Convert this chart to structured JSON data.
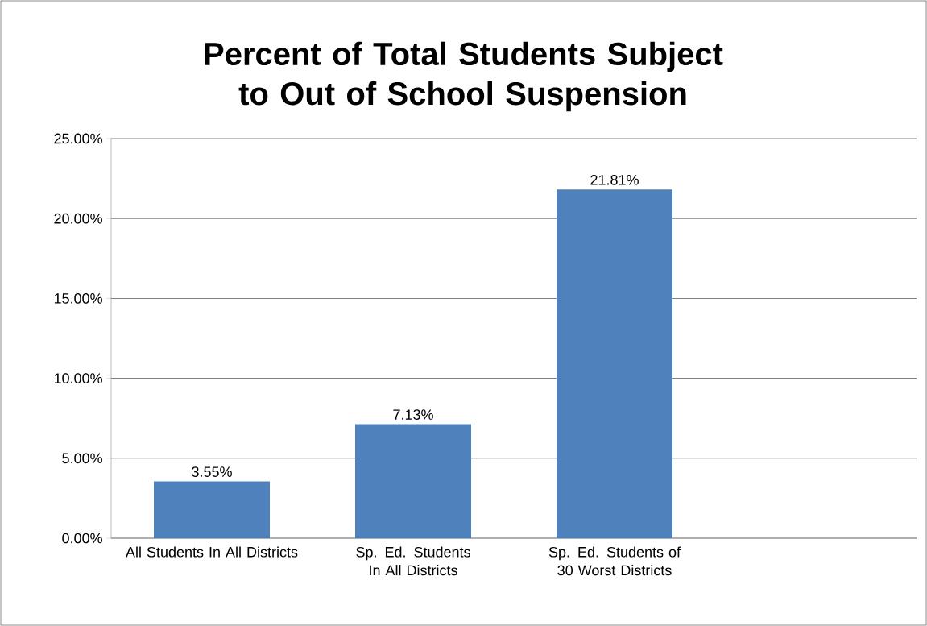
{
  "chart_data": {
    "type": "bar",
    "title": "Percent of Total Students Subject to Out of School Suspension",
    "categories": [
      "All Students In All Districts",
      "Sp. Ed. Students In All Districts",
      "Sp. Ed. Students of 30 Worst Districts",
      null
    ],
    "values": [
      3.55,
      7.13,
      21.81,
      null
    ],
    "value_labels": [
      "3.55%",
      "7.13%",
      "21.81%",
      null
    ],
    "color": "#4f81bd",
    "ylim": [
      0,
      25
    ],
    "yticks": [
      {
        "value": 0,
        "label": "0.00%"
      },
      {
        "value": 5,
        "label": "5.00%"
      },
      {
        "value": 10,
        "label": "10.00%"
      },
      {
        "value": 15,
        "label": "15.00%"
      },
      {
        "value": 20,
        "label": "20.00%"
      },
      {
        "value": 25,
        "label": "25.00%"
      }
    ],
    "grid": "y"
  }
}
